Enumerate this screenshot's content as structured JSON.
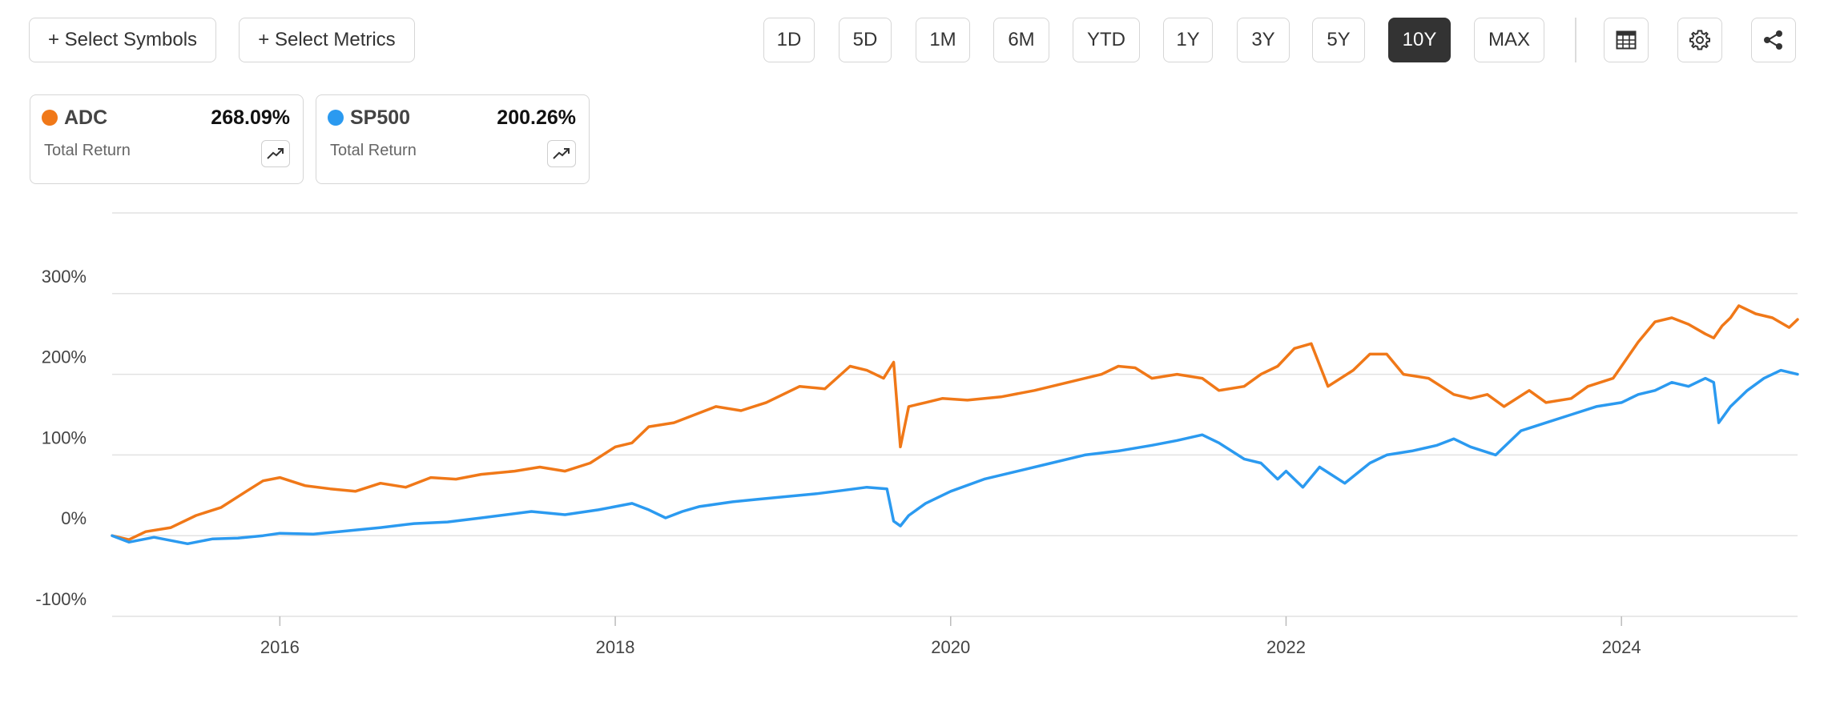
{
  "toolbar": {
    "select_symbols": "+ Select Symbols",
    "select_metrics": "+ Select Metrics",
    "ranges": [
      "1D",
      "5D",
      "1M",
      "6M",
      "YTD",
      "1Y",
      "3Y",
      "5Y",
      "10Y",
      "MAX"
    ],
    "active_range": "10Y",
    "icons": [
      "table-icon",
      "gear-icon",
      "share-icon"
    ]
  },
  "legend": [
    {
      "symbol": "ADC",
      "value": "268.09%",
      "metric": "Total Return",
      "color": "#f07818"
    },
    {
      "symbol": "SP500",
      "value": "200.26%",
      "metric": "Total Return",
      "color": "#2b9af0"
    }
  ],
  "chart_data": {
    "type": "line",
    "title": "",
    "xlabel": "",
    "ylabel": "",
    "xlim": [
      2015.0,
      2025.05
    ],
    "ylim": [
      -100,
      400
    ],
    "x_ticks": [
      2016,
      2018,
      2020,
      2022,
      2024
    ],
    "y_ticks": [
      -100,
      0,
      100,
      200,
      300
    ],
    "y_tick_labels": [
      "-100%",
      "0%",
      "100%",
      "200%",
      "300%"
    ],
    "x_tick_labels": [
      "2016",
      "2018",
      "2020",
      "2022",
      "2024"
    ],
    "grid": true,
    "series": [
      {
        "name": "ADC",
        "color": "#f07818",
        "x": [
          2015.0,
          2015.1,
          2015.2,
          2015.35,
          2015.5,
          2015.65,
          2015.8,
          2015.9,
          2016.0,
          2016.15,
          2016.3,
          2016.45,
          2016.6,
          2016.75,
          2016.9,
          2017.05,
          2017.2,
          2017.4,
          2017.55,
          2017.7,
          2017.85,
          2018.0,
          2018.1,
          2018.2,
          2018.35,
          2018.5,
          2018.6,
          2018.75,
          2018.9,
          2019.0,
          2019.1,
          2019.25,
          2019.4,
          2019.5,
          2019.6,
          2019.66,
          2019.7,
          2019.75,
          2019.85,
          2019.95,
          2020.1,
          2020.3,
          2020.5,
          2020.7,
          2020.9,
          2021.0,
          2021.1,
          2021.2,
          2021.35,
          2021.5,
          2021.6,
          2021.75,
          2021.85,
          2021.95,
          2022.05,
          2022.15,
          2022.25,
          2022.4,
          2022.5,
          2022.6,
          2022.7,
          2022.85,
          2023.0,
          2023.1,
          2023.2,
          2023.3,
          2023.45,
          2023.55,
          2023.7,
          2023.8,
          2023.95,
          2024.0,
          2024.1,
          2024.2,
          2024.3,
          2024.4,
          2024.5,
          2024.55,
          2024.6,
          2024.65,
          2024.7,
          2024.8,
          2024.9,
          2025.0,
          2025.05
        ],
        "values": [
          0,
          -5,
          5,
          10,
          25,
          35,
          55,
          68,
          72,
          62,
          58,
          55,
          65,
          60,
          72,
          70,
          76,
          80,
          85,
          80,
          90,
          110,
          115,
          135,
          140,
          152,
          160,
          155,
          165,
          175,
          185,
          182,
          210,
          205,
          195,
          215,
          110,
          160,
          165,
          170,
          168,
          172,
          180,
          190,
          200,
          210,
          208,
          195,
          200,
          195,
          180,
          185,
          200,
          210,
          232,
          238,
          185,
          205,
          225,
          225,
          200,
          195,
          175,
          170,
          175,
          160,
          180,
          165,
          170,
          185,
          195,
          210,
          240,
          265,
          270,
          262,
          250,
          245,
          260,
          270,
          285,
          275,
          270,
          258,
          268
        ]
      },
      {
        "name": "SP500",
        "color": "#2b9af0",
        "x": [
          2015.0,
          2015.1,
          2015.25,
          2015.45,
          2015.6,
          2015.75,
          2015.9,
          2016.0,
          2016.2,
          2016.35,
          2016.6,
          2016.8,
          2017.0,
          2017.2,
          2017.5,
          2017.7,
          2017.9,
          2018.0,
          2018.1,
          2018.2,
          2018.3,
          2018.4,
          2018.5,
          2018.7,
          2018.85,
          2019.0,
          2019.2,
          2019.35,
          2019.5,
          2019.62,
          2019.66,
          2019.7,
          2019.75,
          2019.85,
          2020.0,
          2020.2,
          2020.4,
          2020.6,
          2020.8,
          2021.0,
          2021.2,
          2021.35,
          2021.5,
          2021.6,
          2021.75,
          2021.85,
          2021.95,
          2022.0,
          2022.1,
          2022.2,
          2022.35,
          2022.5,
          2022.6,
          2022.75,
          2022.9,
          2023.0,
          2023.1,
          2023.25,
          2023.4,
          2023.55,
          2023.7,
          2023.85,
          2024.0,
          2024.1,
          2024.2,
          2024.3,
          2024.4,
          2024.5,
          2024.55,
          2024.58,
          2024.65,
          2024.75,
          2024.85,
          2024.95,
          2025.05
        ],
        "values": [
          0,
          -8,
          -2,
          -10,
          -4,
          -3,
          0,
          3,
          2,
          5,
          10,
          15,
          17,
          22,
          30,
          26,
          32,
          36,
          40,
          32,
          22,
          30,
          36,
          42,
          45,
          48,
          52,
          56,
          60,
          58,
          18,
          12,
          25,
          40,
          55,
          70,
          80,
          90,
          100,
          105,
          112,
          118,
          125,
          115,
          95,
          90,
          70,
          80,
          60,
          85,
          65,
          90,
          100,
          105,
          112,
          120,
          110,
          100,
          130,
          140,
          150,
          160,
          165,
          175,
          180,
          190,
          185,
          195,
          190,
          140,
          160,
          180,
          195,
          205,
          200
        ]
      }
    ]
  }
}
